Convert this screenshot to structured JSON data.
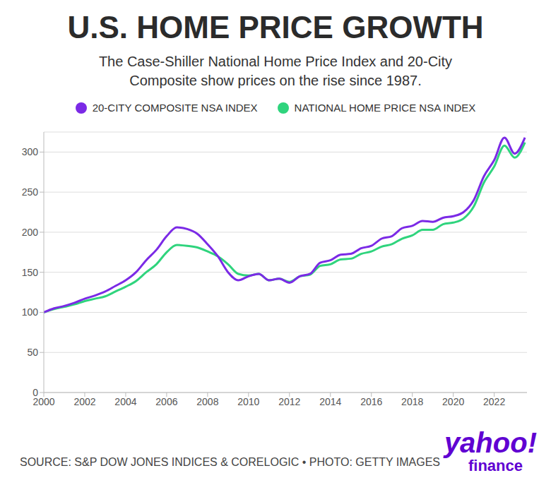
{
  "chart_data": {
    "type": "line",
    "title": "U.S. HOME PRICE GROWTH",
    "subtitle": "The Case-Shiller National Home Price Index and 20-City Composite show prices on the rise since 1987.",
    "source": "SOURCE: S&P DOW JONES INDICES & CORELOGIC • PHOTO: GETTY IMAGES",
    "logo": [
      "yahoo!",
      "finance"
    ],
    "x": [
      2000,
      2000.5,
      2001,
      2001.5,
      2002,
      2002.5,
      2003,
      2003.5,
      2004,
      2004.5,
      2005,
      2005.5,
      2006,
      2006.5,
      2007,
      2007.5,
      2008,
      2008.5,
      2009,
      2009.5,
      2010,
      2010.5,
      2011,
      2011.5,
      2012,
      2012.5,
      2013,
      2013.5,
      2014,
      2014.5,
      2015,
      2015.5,
      2016,
      2016.5,
      2017,
      2017.5,
      2018,
      2018.5,
      2019,
      2019.5,
      2020,
      2020.5,
      2021,
      2021.5,
      2022,
      2022.5,
      2023,
      2023.5
    ],
    "series": [
      {
        "name": "20-CITY COMPOSITE NSA INDEX",
        "color": "#7b2ae6",
        "values": [
          100,
          105,
          108,
          112,
          117,
          121,
          126,
          133,
          140,
          150,
          165,
          178,
          195,
          206,
          204,
          198,
          185,
          170,
          150,
          140,
          145,
          148,
          140,
          142,
          137,
          145,
          148,
          162,
          165,
          172,
          173,
          180,
          183,
          192,
          195,
          205,
          208,
          214,
          213,
          218,
          220,
          225,
          240,
          270,
          290,
          318,
          298,
          318
        ]
      },
      {
        "name": "NATIONAL HOME PRICE NSA INDEX",
        "color": "#2fd47d",
        "values": [
          100,
          104,
          107,
          110,
          114,
          117,
          120,
          126,
          132,
          139,
          150,
          160,
          175,
          184,
          183,
          181,
          176,
          170,
          160,
          148,
          146,
          148,
          140,
          142,
          138,
          145,
          147,
          158,
          160,
          166,
          167,
          173,
          176,
          182,
          185,
          192,
          196,
          203,
          203,
          210,
          212,
          217,
          232,
          262,
          282,
          308,
          293,
          312
        ]
      }
    ],
    "xlim": [
      2000,
      2023.6
    ],
    "xticks": [
      2000,
      2002,
      2004,
      2006,
      2008,
      2010,
      2012,
      2014,
      2016,
      2018,
      2020,
      2022
    ],
    "ylim": [
      0,
      325
    ],
    "yticks": [
      0,
      50,
      100,
      150,
      200,
      250,
      300
    ],
    "grid": true
  }
}
